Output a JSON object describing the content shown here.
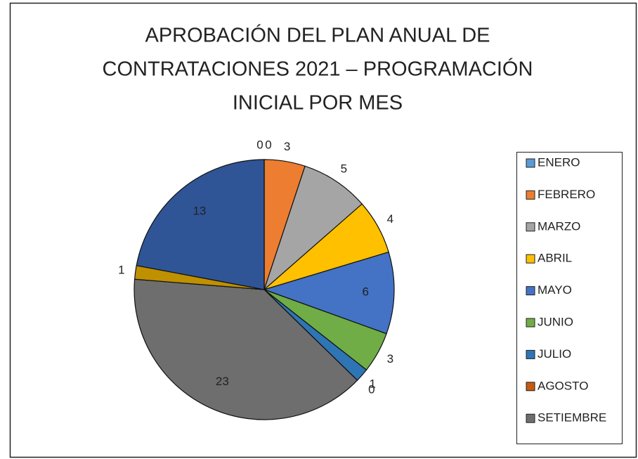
{
  "chart_data": {
    "type": "pie",
    "title": [
      "APROBACIÓN DEL PLAN ANUAL DE",
      "CONTRATACIONES 2021 – PROGRAMACIÓN",
      "INICIAL POR MES"
    ],
    "categories": [
      "ENERO",
      "FEBRERO",
      "MARZO",
      "ABRIL",
      "MAYO",
      "JUNIO",
      "JULIO",
      "AGOSTO",
      "SETIEMBRE",
      null,
      null,
      null
    ],
    "values": [
      0,
      3,
      5,
      4,
      6,
      3,
      1,
      0,
      23,
      1,
      13,
      0
    ],
    "colors": [
      "#5b9bd5",
      "#ed7d31",
      "#a5a5a5",
      "#ffc000",
      "#4472c4",
      "#70ad47",
      "#2e75b6",
      "#c55a11",
      "#6e6e6e",
      "#bf9000",
      "#2f5597",
      "#4e7a2f"
    ],
    "legend": "right"
  }
}
